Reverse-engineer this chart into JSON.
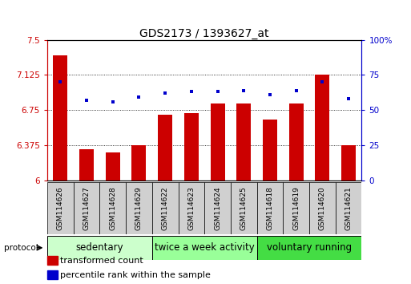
{
  "title": "GDS2173 / 1393627_at",
  "samples": [
    "GSM114626",
    "GSM114627",
    "GSM114628",
    "GSM114629",
    "GSM114622",
    "GSM114623",
    "GSM114624",
    "GSM114625",
    "GSM114618",
    "GSM114619",
    "GSM114620",
    "GSM114621"
  ],
  "bar_values": [
    7.33,
    6.33,
    6.3,
    6.375,
    6.7,
    6.72,
    6.82,
    6.82,
    6.65,
    6.82,
    7.125,
    6.375
  ],
  "dot_values": [
    70,
    57,
    56,
    59,
    62,
    63,
    63,
    64,
    61,
    64,
    70,
    58
  ],
  "ylim": [
    6.0,
    7.5
  ],
  "y2lim": [
    0,
    100
  ],
  "yticks": [
    6.0,
    6.375,
    6.75,
    7.125,
    7.5
  ],
  "ytick_labels": [
    "6",
    "6.375",
    "6.75",
    "7.125",
    "7.5"
  ],
  "y2ticks": [
    0,
    25,
    50,
    75,
    100
  ],
  "y2tick_labels": [
    "0",
    "25",
    "50",
    "75",
    "100%"
  ],
  "bar_color": "#cc0000",
  "dot_color": "#0000cc",
  "bar_bottom": 6.0,
  "groups": [
    {
      "label": "sedentary",
      "start": 0,
      "end": 4,
      "color": "#ccffcc"
    },
    {
      "label": "twice a week activity",
      "start": 4,
      "end": 8,
      "color": "#99ff99"
    },
    {
      "label": "voluntary running",
      "start": 8,
      "end": 12,
      "color": "#44dd44"
    }
  ],
  "protocol_label": "protocol",
  "legend_bar_label": "transformed count",
  "legend_dot_label": "percentile rank within the sample",
  "grid_color": "black",
  "title_fontsize": 10,
  "tick_fontsize": 7.5,
  "sample_fontsize": 6.5,
  "group_fontsize": 8.5,
  "legend_fontsize": 8,
  "bg_color": "#ffffff"
}
